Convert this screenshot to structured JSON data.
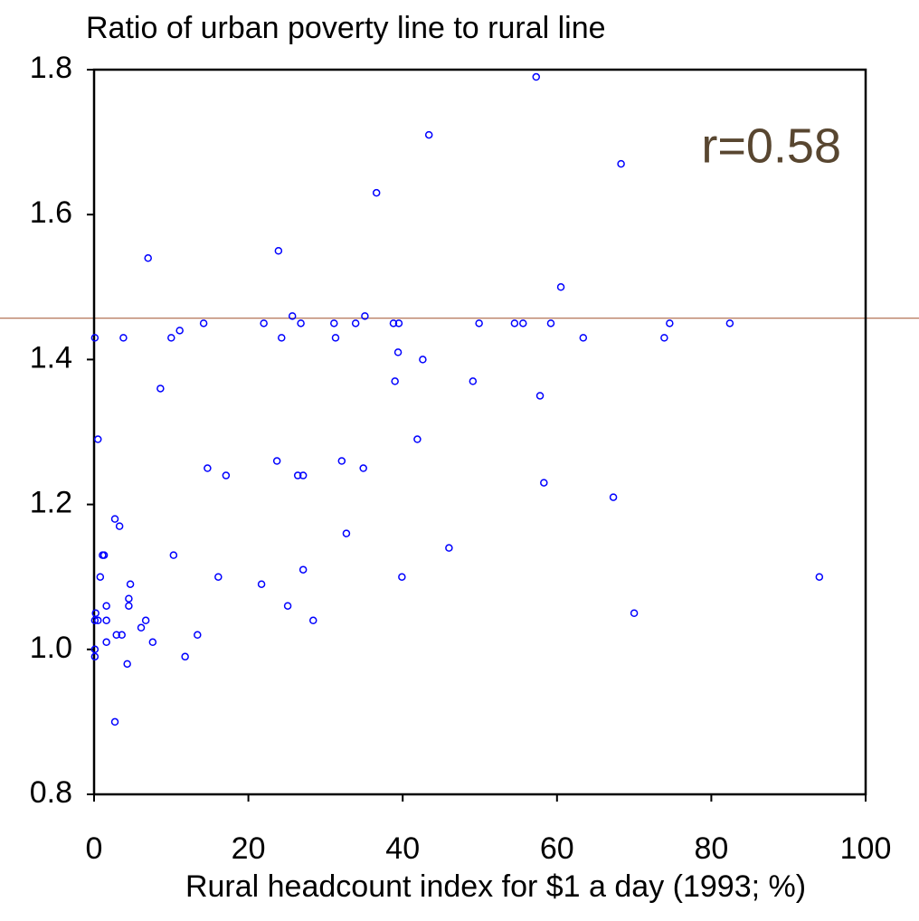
{
  "chart_data": {
    "type": "scatter",
    "title": "Ratio of urban poverty line to rural line",
    "x_label": "Rural headcount index for $1 a day (1993; %)",
    "color": "#0000ff",
    "x": [
      0.1,
      7.0,
      0.5,
      3.8,
      8.6,
      10,
      11.1,
      14.2,
      14.7,
      17.1,
      22,
      23.9,
      24.3,
      23.7,
      25.7,
      26.4,
      26.8,
      27.1,
      31.1,
      31.3,
      32.1,
      33.9,
      35.1,
      34.9,
      36.6,
      38.8,
      39.5,
      39.4,
      39,
      41.9,
      42.6,
      43.4,
      39.9,
      46,
      32.7,
      27.1,
      21.7,
      25.1,
      28.4,
      16.1,
      10.3,
      13.4,
      11.8,
      7.6,
      6.7,
      6.1,
      4.7,
      4.5,
      4.5,
      4.3,
      3.6,
      2.9,
      3.3,
      2.7,
      2.7,
      1.6,
      1.6,
      1.6,
      1.3,
      1.1,
      0.8,
      0.5,
      0.2,
      0.1,
      0.1,
      0.1,
      49.1,
      49.9,
      54.5,
      55.6,
      57.3,
      57.8,
      58.3,
      59.2,
      60.5,
      63.4,
      67.3,
      68.3,
      70,
      73.9,
      74.6,
      82.4,
      94
    ],
    "values": [
      1.43,
      1.54,
      1.29,
      1.43,
      1.36,
      1.43,
      1.44,
      1.45,
      1.25,
      1.24,
      1.45,
      1.55,
      1.43,
      1.26,
      1.46,
      1.24,
      1.45,
      1.24,
      1.45,
      1.43,
      1.26,
      1.45,
      1.46,
      1.25,
      1.63,
      1.45,
      1.45,
      1.41,
      1.37,
      1.29,
      1.4,
      1.71,
      1.1,
      1.14,
      1.16,
      1.11,
      1.09,
      1.06,
      1.04,
      1.1,
      1.13,
      1.02,
      0.99,
      1.01,
      1.04,
      1.03,
      1.09,
      1.07,
      1.06,
      0.98,
      1.02,
      1.02,
      1.17,
      1.18,
      0.9,
      1.04,
      1.06,
      1.01,
      1.13,
      1.13,
      1.1,
      1.04,
      1.05,
      1.04,
      1.0,
      0.99,
      1.37,
      1.45,
      1.45,
      1.45,
      1.79,
      1.35,
      1.23,
      1.45,
      1.5,
      1.43,
      1.21,
      1.67,
      1.05,
      1.43,
      1.45,
      1.45,
      1.1
    ],
    "xlim": [
      0,
      100
    ],
    "xticks": [
      0,
      20,
      40,
      60,
      80,
      100
    ],
    "ylim": [
      0.8,
      1.8
    ],
    "yticks": [
      0.8,
      {
        "value": 1,
        "label": "1.0"
      },
      1.2,
      1.4,
      1.6,
      1.8
    ],
    "hline": {
      "value": 1.457,
      "color": "#a0522d"
    },
    "annotation": {
      "text": "r=0.58",
      "color": "#584630"
    }
  }
}
